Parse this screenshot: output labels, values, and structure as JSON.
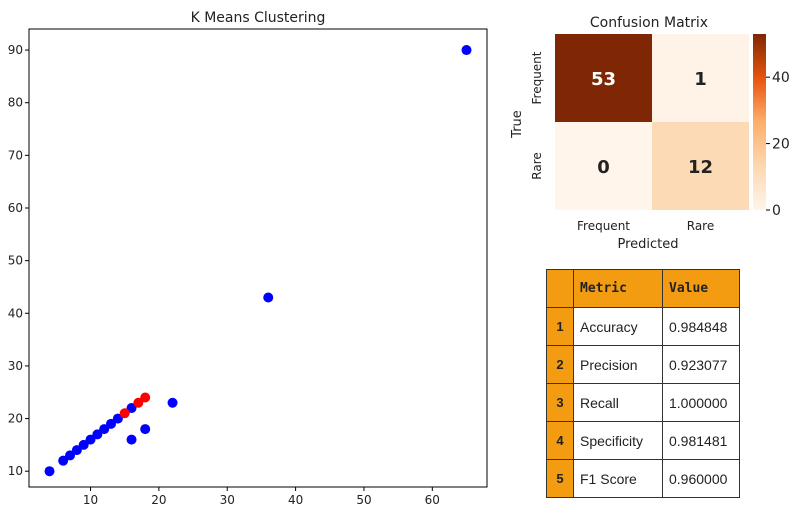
{
  "chart_data": [
    {
      "type": "scatter",
      "title": "K Means Clustering",
      "xlabel": "",
      "ylabel": "",
      "xlim": [
        1,
        68
      ],
      "ylim": [
        7,
        94
      ],
      "xticks": [
        10,
        20,
        30,
        40,
        50,
        60
      ],
      "yticks": [
        10,
        20,
        30,
        40,
        50,
        60,
        70,
        80,
        90
      ],
      "grid": false,
      "series": [
        {
          "color": "#0000ff",
          "points": [
            [
              4,
              10
            ],
            [
              6,
              12
            ],
            [
              7,
              13
            ],
            [
              8,
              14
            ],
            [
              9,
              15
            ],
            [
              10,
              16
            ],
            [
              11,
              17
            ],
            [
              12,
              18
            ],
            [
              13,
              19
            ],
            [
              14,
              20
            ],
            [
              16,
              22
            ],
            [
              16,
              16
            ],
            [
              18,
              18
            ],
            [
              22,
              23
            ],
            [
              36,
              43
            ],
            [
              65,
              90
            ]
          ]
        },
        {
          "color": "#ff0000",
          "points": [
            [
              15,
              21
            ],
            [
              17,
              23
            ],
            [
              18,
              24
            ]
          ]
        }
      ]
    },
    {
      "type": "heatmap",
      "title": "Confusion Matrix",
      "xlabel": "Predicted",
      "ylabel": "True",
      "x_categories": [
        "Frequent",
        "Rare"
      ],
      "y_categories": [
        "Frequent",
        "Rare"
      ],
      "values": [
        [
          53,
          1
        ],
        [
          0,
          12
        ]
      ],
      "colorbar_ticks": [
        0,
        20,
        40
      ],
      "colorbar_range": [
        0,
        53
      ],
      "colors": {
        "low": "#fff5eb",
        "mid": "#fdae6b",
        "high": "#7f2704"
      }
    }
  ],
  "metrics_table": {
    "headers": [
      "",
      "Metric",
      "Value"
    ],
    "rows": [
      {
        "index": "1",
        "metric": "Accuracy",
        "value": "0.984848"
      },
      {
        "index": "2",
        "metric": "Precision",
        "value": "0.923077"
      },
      {
        "index": "3",
        "metric": "Recall",
        "value": "1.000000"
      },
      {
        "index": "4",
        "metric": "Specificity",
        "value": "0.981481"
      },
      {
        "index": "5",
        "metric": "F1 Score",
        "value": "0.960000"
      }
    ],
    "header_color": "#f39c12"
  }
}
